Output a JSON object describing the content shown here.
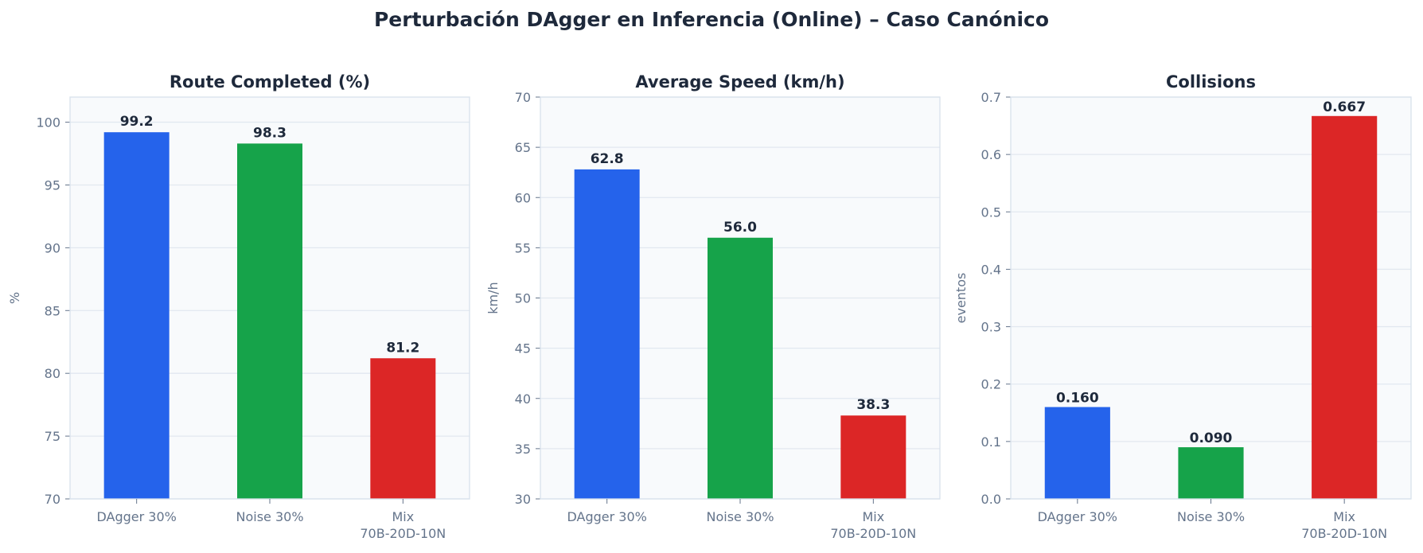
{
  "title": "Perturbación DAgger en Inferencia (Online) – Caso Canónico",
  "colors": {
    "dagger": "#2563eb",
    "noise": "#16a34a",
    "mix": "#dc2626",
    "panel_bg": "#f8fafc",
    "grid": "#e2e8f0",
    "text": "#1e293b",
    "muted": "#64748b"
  },
  "chart_data": [
    {
      "type": "bar",
      "title": "Route Completed (%)",
      "ylabel": "%",
      "categories": [
        [
          "DAgger 30%"
        ],
        [
          "Noise 30%"
        ],
        [
          "Mix",
          "70B-20D-10N"
        ]
      ],
      "values": [
        99.2,
        98.3,
        81.2
      ],
      "value_labels": [
        "99.2",
        "98.3",
        "81.2"
      ],
      "ylim": [
        70,
        102
      ],
      "yticks": [
        70,
        75,
        80,
        85,
        90,
        95,
        100
      ],
      "ytick_labels": [
        "70",
        "75",
        "80",
        "85",
        "90",
        "95",
        "100"
      ],
      "grid": true,
      "label_position": "above"
    },
    {
      "type": "bar",
      "title": "Average Speed (km/h)",
      "ylabel": "km/h",
      "categories": [
        [
          "DAgger 30%"
        ],
        [
          "Noise 30%"
        ],
        [
          "Mix",
          "70B-20D-10N"
        ]
      ],
      "values": [
        62.8,
        56.0,
        38.3
      ],
      "value_labels": [
        "62.8",
        "56.0",
        "38.3"
      ],
      "ylim": [
        30,
        70
      ],
      "yticks": [
        30,
        35,
        40,
        45,
        50,
        55,
        60,
        65,
        70
      ],
      "ytick_labels": [
        "30",
        "35",
        "40",
        "45",
        "50",
        "55",
        "60",
        "65",
        "70"
      ],
      "grid": true,
      "label_position": "above"
    },
    {
      "type": "bar",
      "title": "Collisions",
      "ylabel": "eventos",
      "categories": [
        [
          "DAgger 30%"
        ],
        [
          "Noise 30%"
        ],
        [
          "Mix",
          "70B-20D-10N"
        ]
      ],
      "values": [
        0.16,
        0.09,
        0.667
      ],
      "value_labels": [
        "0.160",
        "0.090",
        "0.667"
      ],
      "ylim": [
        0,
        0.7
      ],
      "yticks": [
        0,
        0.1,
        0.2,
        0.3,
        0.4,
        0.5,
        0.6,
        0.7
      ],
      "ytick_labels": [
        "0.0",
        "0.1",
        "0.2",
        "0.3",
        "0.4",
        "0.5",
        "0.6",
        "0.7"
      ],
      "grid": true,
      "label_position": "bottom"
    }
  ]
}
